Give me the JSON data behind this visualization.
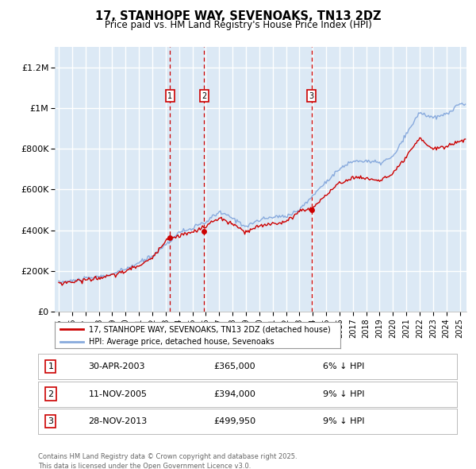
{
  "title": "17, STANHOPE WAY, SEVENOAKS, TN13 2DZ",
  "subtitle": "Price paid vs. HM Land Registry's House Price Index (HPI)",
  "ylim": [
    0,
    1300000
  ],
  "yticks": [
    0,
    200000,
    400000,
    600000,
    800000,
    1000000,
    1200000
  ],
  "ytick_labels": [
    "£0",
    "£200K",
    "£400K",
    "£600K",
    "£800K",
    "£1M",
    "£1.2M"
  ],
  "sale_year_decimals": [
    2003.33,
    2005.87,
    2013.91
  ],
  "sale_prices": [
    365000,
    394000,
    499950
  ],
  "sale_labels": [
    "1",
    "2",
    "3"
  ],
  "legend_house_label": "17, STANHOPE WAY, SEVENOAKS, TN13 2DZ (detached house)",
  "legend_hpi_label": "HPI: Average price, detached house, Sevenoaks",
  "table_rows": [
    {
      "num": "1",
      "date": "30-APR-2003",
      "price": "£365,000",
      "hpi": "6% ↓ HPI"
    },
    {
      "num": "2",
      "date": "11-NOV-2005",
      "price": "£394,000",
      "hpi": "9% ↓ HPI"
    },
    {
      "num": "3",
      "date": "28-NOV-2013",
      "price": "£499,950",
      "hpi": "9% ↓ HPI"
    }
  ],
  "footer": "Contains HM Land Registry data © Crown copyright and database right 2025.\nThis data is licensed under the Open Government Licence v3.0.",
  "house_color": "#cc0000",
  "hpi_color": "#88aadd",
  "bg_color": "#dce9f5",
  "grid_color": "#ffffff",
  "vline_color": "#cc0000",
  "hpi_keypoints_years": [
    1995,
    1996,
    1997,
    1998,
    1999,
    2000,
    2001,
    2002,
    2003,
    2004,
    2005,
    2006,
    2007,
    2008,
    2009,
    2010,
    2011,
    2012,
    2013,
    2014,
    2015,
    2016,
    2017,
    2018,
    2019,
    2020,
    2021,
    2022,
    2023,
    2024,
    2025
  ],
  "hpi_keypoints_vals": [
    145000,
    152000,
    162000,
    172000,
    185000,
    210000,
    240000,
    275000,
    330000,
    390000,
    410000,
    440000,
    490000,
    460000,
    420000,
    450000,
    465000,
    470000,
    500000,
    570000,
    640000,
    700000,
    740000,
    740000,
    730000,
    760000,
    870000,
    980000,
    950000,
    970000,
    1020000
  ],
  "house_keypoints_years": [
    1995,
    1996,
    1997,
    1998,
    1999,
    2000,
    2001,
    2002,
    2003,
    2004,
    2005,
    2006,
    2007,
    2008,
    2009,
    2010,
    2011,
    2012,
    2013,
    2014,
    2015,
    2016,
    2017,
    2018,
    2019,
    2020,
    2021,
    2022,
    2023,
    2024,
    2025
  ],
  "house_keypoints_vals": [
    140000,
    148000,
    157000,
    167000,
    178000,
    200000,
    228000,
    262000,
    355000,
    375000,
    390000,
    420000,
    460000,
    430000,
    390000,
    420000,
    435000,
    440000,
    495000,
    510000,
    575000,
    630000,
    660000,
    655000,
    645000,
    675000,
    760000,
    850000,
    800000,
    810000,
    840000
  ]
}
